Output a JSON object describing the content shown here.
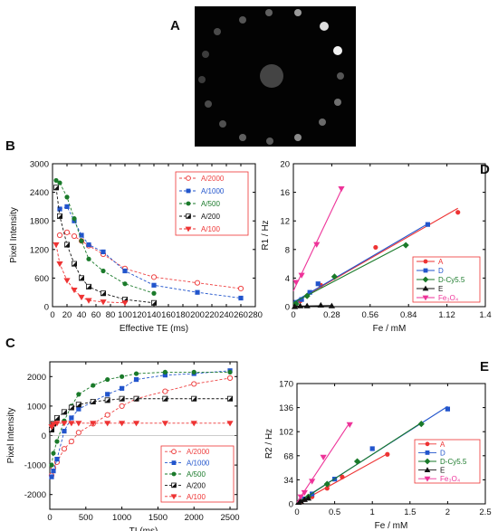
{
  "panel_labels": {
    "A": "A",
    "B": "B",
    "C": "C",
    "D": "D",
    "E": "E"
  },
  "chart_data": [
    {
      "id": "B",
      "type": "line",
      "xlabel": "Effective TE (ms)",
      "ylabel": "Pixel Intensity",
      "xlim": [
        0,
        280
      ],
      "ylim": [
        0,
        3000
      ],
      "xticks": [
        0,
        20,
        40,
        60,
        80,
        100,
        120,
        140,
        160,
        180,
        200,
        220,
        240,
        260,
        280
      ],
      "yticks": [
        0,
        600,
        1200,
        1800,
        2400,
        3000
      ],
      "legend_position": "top-right",
      "series": [
        {
          "name": "A/2000",
          "color": "#ee4444",
          "marker": "circle-open",
          "x": [
            10,
            20,
            30,
            40,
            50,
            70,
            100,
            140,
            200,
            260
          ],
          "y": [
            1500,
            1560,
            1480,
            1380,
            1280,
            1100,
            800,
            620,
            500,
            380
          ]
        },
        {
          "name": "A/1000",
          "color": "#2255cc",
          "marker": "square",
          "x": [
            10,
            20,
            30,
            40,
            50,
            70,
            100,
            140,
            200,
            260
          ],
          "y": [
            2050,
            2100,
            1800,
            1500,
            1300,
            1150,
            750,
            450,
            300,
            180
          ]
        },
        {
          "name": "A/500",
          "color": "#1a7a2a",
          "marker": "circle",
          "x": [
            5,
            10,
            20,
            30,
            40,
            50,
            70,
            100,
            140
          ],
          "y": [
            2650,
            2600,
            2300,
            1850,
            1380,
            1000,
            750,
            480,
            280
          ]
        },
        {
          "name": "A/200",
          "color": "#111111",
          "marker": "square-half",
          "x": [
            5,
            10,
            20,
            30,
            40,
            50,
            70,
            100,
            140
          ],
          "y": [
            2500,
            1900,
            1300,
            900,
            600,
            420,
            280,
            150,
            80
          ]
        },
        {
          "name": "A/100",
          "color": "#ee3333",
          "marker": "triangle-down",
          "x": [
            5,
            10,
            20,
            30,
            40,
            50,
            70,
            100
          ],
          "y": [
            1300,
            900,
            550,
            350,
            200,
            130,
            100,
            80
          ]
        }
      ]
    },
    {
      "id": "C",
      "type": "line",
      "xlabel": "TI (ms)",
      "ylabel": "Pixel Intensity",
      "xlim": [
        0,
        2600
      ],
      "ylim": [
        -2500,
        2500
      ],
      "xticks": [
        0,
        500,
        1000,
        1500,
        2000,
        2500
      ],
      "yticks": [
        -2000,
        -1000,
        0,
        1000,
        2000
      ],
      "legend_position": "bottom-right",
      "series": [
        {
          "name": "A/2000",
          "color": "#ee4444",
          "marker": "circle-open",
          "x": [
            25,
            50,
            100,
            200,
            300,
            400,
            600,
            800,
            1000,
            1200,
            1600,
            2000,
            2500
          ],
          "y": [
            -1350,
            -1100,
            -900,
            -450,
            -200,
            100,
            400,
            700,
            1000,
            1250,
            1500,
            1750,
            1950
          ]
        },
        {
          "name": "A/1000",
          "color": "#2255cc",
          "marker": "square",
          "x": [
            25,
            50,
            100,
            200,
            300,
            400,
            600,
            800,
            1000,
            1200,
            1600,
            2000,
            2500
          ],
          "y": [
            -1400,
            -1200,
            -800,
            150,
            600,
            900,
            1150,
            1400,
            1600,
            1900,
            2050,
            2100,
            2200
          ]
        },
        {
          "name": "A/500",
          "color": "#1a7a2a",
          "marker": "circle",
          "x": [
            25,
            50,
            100,
            200,
            300,
            400,
            600,
            800,
            1000,
            1200,
            1600,
            2000,
            2500
          ],
          "y": [
            -1000,
            -600,
            -200,
            500,
            1000,
            1400,
            1700,
            1900,
            2000,
            2100,
            2150,
            2150,
            2150
          ]
        },
        {
          "name": "A/200",
          "color": "#111111",
          "marker": "square-half",
          "x": [
            25,
            50,
            100,
            200,
            300,
            400,
            600,
            800,
            1000,
            1200,
            1600,
            2000,
            2500
          ],
          "y": [
            200,
            400,
            600,
            800,
            950,
            1050,
            1150,
            1200,
            1250,
            1250,
            1250,
            1250,
            1250
          ]
        },
        {
          "name": "A/100",
          "color": "#ee3333",
          "marker": "triangle-down",
          "x": [
            25,
            50,
            100,
            200,
            300,
            400,
            600,
            800,
            1000,
            1200,
            1600,
            2000,
            2500
          ],
          "y": [
            300,
            380,
            420,
            420,
            420,
            420,
            420,
            420,
            420,
            420,
            420,
            420,
            420
          ]
        }
      ]
    },
    {
      "id": "D",
      "type": "scatter",
      "xlabel": "Fe / mM",
      "ylabel": "R1 / Hz",
      "xlim": [
        0,
        1.4
      ],
      "ylim": [
        0,
        20
      ],
      "xticks": [
        0,
        0.28,
        0.56,
        0.84,
        1.12,
        1.4
      ],
      "xtick_labels": [
        "0",
        "0.28",
        "0.56",
        "0.84",
        "1.12",
        "1.4"
      ],
      "yticks": [
        0,
        4,
        8,
        12,
        16,
        20
      ],
      "legend_position": "bottom-right",
      "series": [
        {
          "name": "A",
          "color": "#ee3333",
          "marker": "circle",
          "x": [
            0.02,
            0.05,
            0.1,
            0.2,
            0.6,
            1.2
          ],
          "y": [
            0.5,
            0.8,
            1.5,
            3.0,
            8.3,
            13.2
          ]
        },
        {
          "name": "D",
          "color": "#2255cc",
          "marker": "square",
          "x": [
            0.02,
            0.06,
            0.12,
            0.18,
            0.98
          ],
          "y": [
            0.6,
            1.0,
            2.0,
            3.2,
            11.5
          ]
        },
        {
          "name": "D-Cy5.5",
          "color": "#1a7a2a",
          "marker": "diamond",
          "x": [
            0.02,
            0.1,
            0.3,
            0.82
          ],
          "y": [
            0.4,
            1.5,
            4.2,
            8.6
          ]
        },
        {
          "name": "E",
          "color": "#111111",
          "marker": "triangle-up",
          "x": [
            0.01,
            0.05,
            0.1,
            0.2,
            0.28
          ],
          "y": [
            0.0,
            0.1,
            0.1,
            0.2,
            0.1
          ]
        },
        {
          "name": "Fe₃O₄",
          "color": "#ee3399",
          "marker": "triangle-down",
          "x": [
            0.02,
            0.06,
            0.17,
            0.35
          ],
          "y": [
            3.4,
            4.4,
            8.7,
            16.5
          ]
        }
      ]
    },
    {
      "id": "E",
      "type": "scatter",
      "xlabel": "Fe / mM",
      "ylabel": "R2 / Hz",
      "xlim": [
        0,
        2.5
      ],
      "ylim": [
        0,
        170
      ],
      "xticks": [
        0,
        0.5,
        1,
        1.5,
        2,
        2.5
      ],
      "xtick_labels": [
        "0",
        "0.5",
        "1",
        "1.5",
        "2",
        "2.5"
      ],
      "yticks": [
        0,
        34,
        68,
        102,
        136,
        170
      ],
      "legend_position": "bottom-right",
      "series": [
        {
          "name": "A",
          "color": "#ee3333",
          "marker": "circle",
          "x": [
            0.05,
            0.1,
            0.2,
            0.4,
            0.6,
            1.2
          ],
          "y": [
            3,
            6,
            10,
            22,
            38,
            70
          ]
        },
        {
          "name": "D",
          "color": "#2255cc",
          "marker": "square",
          "x": [
            0.05,
            0.1,
            0.2,
            0.5,
            1.0,
            2.0
          ],
          "y": [
            4,
            7,
            14,
            35,
            78,
            134
          ]
        },
        {
          "name": "D-Cy5.5",
          "color": "#1a7a2a",
          "marker": "diamond",
          "x": [
            0.05,
            0.15,
            0.4,
            0.8,
            1.65
          ],
          "y": [
            4,
            10,
            28,
            60,
            113
          ]
        },
        {
          "name": "E",
          "color": "#111111",
          "marker": "triangle-up",
          "x": [
            0.02,
            0.05,
            0.1,
            0.15
          ],
          "y": [
            2,
            4,
            6,
            8
          ]
        },
        {
          "name": "Fe₃O₄",
          "color": "#ee3399",
          "marker": "triangle-down",
          "x": [
            0.05,
            0.1,
            0.2,
            0.35,
            0.7
          ],
          "y": [
            10,
            16,
            32,
            66,
            112
          ]
        }
      ]
    }
  ]
}
